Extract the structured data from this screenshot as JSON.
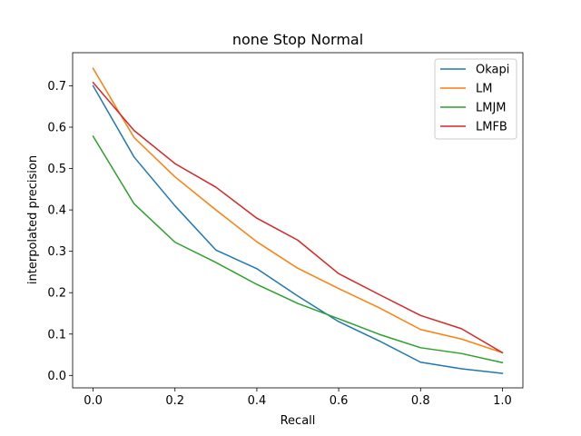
{
  "chart_data": {
    "type": "line",
    "title": "none Stop Normal",
    "xlabel": "Recall",
    "ylabel": "interpolated precision",
    "xlim": [
      -0.05,
      1.05
    ],
    "ylim": [
      -0.03,
      0.78
    ],
    "xticks": [
      "0.0",
      "0.2",
      "0.4",
      "0.6",
      "0.8",
      "1.0"
    ],
    "yticks": [
      "0.0",
      "0.1",
      "0.2",
      "0.3",
      "0.4",
      "0.5",
      "0.6",
      "0.7"
    ],
    "x": [
      0.0,
      0.1,
      0.2,
      0.3,
      0.4,
      0.5,
      0.6,
      0.7,
      0.8,
      0.9,
      1.0
    ],
    "series": [
      {
        "name": "Okapi",
        "color": "#1f77b4",
        "values": [
          0.7,
          0.528,
          0.41,
          0.303,
          0.258,
          0.192,
          0.13,
          0.083,
          0.032,
          0.016,
          0.005
        ]
      },
      {
        "name": "LM",
        "color": "#ff7f0e",
        "values": [
          0.742,
          0.575,
          0.48,
          0.4,
          0.323,
          0.259,
          0.21,
          0.163,
          0.111,
          0.088,
          0.055
        ]
      },
      {
        "name": "LMJM",
        "color": "#2ca02c",
        "values": [
          0.578,
          0.415,
          0.322,
          0.273,
          0.22,
          0.174,
          0.137,
          0.099,
          0.067,
          0.053,
          0.031
        ]
      },
      {
        "name": "LMFB",
        "color": "#d62728",
        "values": [
          0.708,
          0.592,
          0.512,
          0.455,
          0.38,
          0.327,
          0.246,
          0.195,
          0.145,
          0.113,
          0.055
        ]
      }
    ],
    "grid": false,
    "legend_position": "top-right"
  }
}
